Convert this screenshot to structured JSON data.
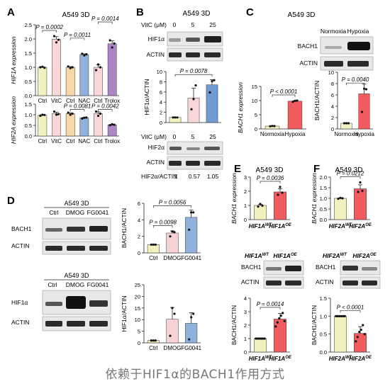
{
  "caption": "依赖于HIF1α的BACH1作用方式",
  "colors": {
    "ctrl": "#f2f0bf",
    "vitc": "#f9d7d9",
    "nac": "#f5d7a8",
    "nac2": "#8fb2dd",
    "trolox": "#ad85c6",
    "hif25": "#6f9bd2",
    "hypoxia": "#f05b5e",
    "dmog": "#f6d2d5",
    "fg": "#8fb2dd",
    "oe": "#f05b5e",
    "axis": "#222222",
    "sig": "#333333"
  },
  "panels": {
    "A": {
      "letter": "A",
      "title": "A549 3D"
    },
    "B": {
      "letter": "B",
      "title": "A549 3D",
      "dose_label": "VitC (μM)",
      "doses": [
        "0",
        "5",
        "25"
      ],
      "blot1": [
        "HIF1α",
        "ACTIN"
      ],
      "blot2": [
        "HIF2α",
        "ACTIN"
      ],
      "ratio_label": "HIF2α/ACTIN",
      "ratios": [
        "1",
        "0.57",
        "1.05"
      ]
    },
    "C": {
      "letter": "C",
      "title": "A549 3D",
      "lanes": [
        "Normoxia",
        "Hypoxia"
      ],
      "blot": [
        "BACH1",
        "ACTIN"
      ]
    },
    "D": {
      "letter": "D",
      "title1": "A549 3D",
      "title2": "A549 3D",
      "lanes": [
        "Ctrl",
        "DMOG",
        "FG0041"
      ],
      "blot1": [
        "BACH1",
        "ACTIN"
      ],
      "blot2": [
        "HIF1α",
        "ACTIN"
      ]
    },
    "E": {
      "letter": "E",
      "title": "A549 3D",
      "lanes": [
        "HIF1A",
        "HIF1A"
      ],
      "sups": [
        "WT",
        "OE"
      ],
      "blot": [
        "BACH1",
        "ACTIN"
      ]
    },
    "F": {
      "letter": "F",
      "title": "A549 3D",
      "lanes": [
        "HIF2A",
        "HIF2A"
      ],
      "sups": [
        "WT",
        "OE"
      ],
      "blot": [
        "BACH1",
        "ACTIN"
      ]
    }
  },
  "chart_data": [
    {
      "id": "A1",
      "type": "bar",
      "ylabel": "HIF1A expression",
      "ylim": [
        0,
        2.5
      ],
      "yticks": [
        0.0,
        0.5,
        1.0,
        1.5,
        2.0,
        2.5
      ],
      "categories": [
        "Ctrl",
        "VitC",
        "Ctrl",
        "NAC",
        "Ctrl",
        "Trolox"
      ],
      "values": [
        1.0,
        1.99,
        1.0,
        1.45,
        1.0,
        1.83
      ],
      "points": [
        [
          1.0,
          1.02,
          0.98
        ],
        [
          2.1,
          1.88,
          1.97
        ],
        [
          1.03,
          0.97,
          1.0
        ],
        [
          1.48,
          1.42,
          1.46
        ],
        [
          0.9,
          1.1,
          1.0
        ],
        [
          1.95,
          1.7,
          1.84
        ]
      ],
      "annotations": [
        {
          "from": 0,
          "to": 1,
          "label": "P = 0.0002"
        },
        {
          "from": 2,
          "to": 3,
          "label": "P = 0.0011"
        },
        {
          "from": 4,
          "to": 5,
          "label": "P = 0.0014"
        }
      ]
    },
    {
      "id": "A2",
      "type": "bar",
      "ylabel": "HIF2A expression",
      "ylim": [
        0,
        1.5
      ],
      "yticks": [
        0.0,
        0.5,
        1.0,
        1.5
      ],
      "categories": [
        "Ctrl",
        "VitC",
        "Ctrl",
        "NAC",
        "Ctrl",
        "Trolox"
      ],
      "values": [
        0.98,
        1.06,
        1.05,
        0.85,
        1.05,
        0.53
      ],
      "points": [
        [
          0.95,
          1.0,
          0.99
        ],
        [
          1.15,
          1.0,
          1.03
        ],
        [
          1.1,
          1.0,
          1.05
        ],
        [
          0.82,
          0.86,
          0.87
        ],
        [
          1.15,
          0.95,
          1.05
        ],
        [
          0.51,
          0.55,
          0.53
        ]
      ],
      "annotations": [
        {
          "from": 2,
          "to": 3,
          "label": "P = 0.0081"
        },
        {
          "from": 4,
          "to": 5,
          "label": "P = 0.0042"
        }
      ]
    },
    {
      "id": "B1",
      "type": "bar",
      "ylabel": "HIF1α/ACTIN",
      "ylim": [
        0,
        10
      ],
      "yticks": [
        0,
        2,
        4,
        6,
        8,
        10
      ],
      "categories": [
        "0",
        "5",
        "25"
      ],
      "values": [
        1.0,
        4.8,
        7.4
      ],
      "points": [
        [
          1.0,
          1.0,
          1.0
        ],
        [
          2.6,
          4.6,
          7.3
        ],
        [
          5.9,
          8.1,
          8.3
        ]
      ],
      "annotations": [
        {
          "from": 0,
          "to": 2,
          "label": "P = 0.0078"
        }
      ]
    },
    {
      "id": "C1",
      "type": "bar",
      "ylabel": "BACH1 expression",
      "ylim": [
        0,
        15
      ],
      "yticks": [
        0,
        5,
        10,
        15
      ],
      "categories": [
        "Normoxia",
        "Hypoxia"
      ],
      "values": [
        1.0,
        9.8
      ],
      "points": [
        [
          0.95,
          1.05,
          1.0
        ],
        [
          9.6,
          9.9,
          10.0
        ]
      ],
      "annotations": [
        {
          "from": 0,
          "to": 1,
          "label": "P < 0.0001"
        }
      ]
    },
    {
      "id": "C2",
      "type": "bar",
      "ylabel": "BACH1/ACTIN",
      "ylim": [
        0,
        10
      ],
      "yticks": [
        0,
        2,
        4,
        6,
        8,
        10
      ],
      "categories": [
        "Normoxia",
        "Hypoxia"
      ],
      "values": [
        1.0,
        6.2
      ],
      "points": [
        [
          1.0,
          1.0,
          1.0
        ],
        [
          3.0,
          7.1,
          7.0
        ]
      ],
      "annotations": [
        {
          "from": 0,
          "to": 1,
          "label": "P = 0.0040"
        }
      ]
    },
    {
      "id": "D1",
      "type": "bar",
      "ylabel": "BACH1/ACTIN",
      "ylim": [
        0,
        6
      ],
      "yticks": [
        0,
        2,
        4,
        6
      ],
      "categories": [
        "Ctrl",
        "DMOG",
        "FG0041"
      ],
      "values": [
        1.0,
        2.4,
        4.3
      ],
      "points": [
        [
          1.0,
          1.0,
          1.0
        ],
        [
          2.0,
          2.6,
          2.5
        ],
        [
          2.8,
          4.9,
          4.9
        ]
      ],
      "annotations": [
        {
          "from": 0,
          "to": 1,
          "label": "P = 0.0098"
        },
        {
          "from": 0,
          "to": 2,
          "label": "P = 0.0056"
        }
      ]
    },
    {
      "id": "D2",
      "type": "bar",
      "ylabel": "HIF1α/ACTIN",
      "ylim": [
        0,
        25
      ],
      "yticks": [
        0,
        5,
        10,
        15,
        20,
        25
      ],
      "categories": [
        "Ctrl",
        "DMOG",
        "FG0041"
      ],
      "values": [
        1.0,
        10.2,
        8.4
      ],
      "points": [
        [
          1.0,
          1.0,
          1.0
        ],
        [
          3.0,
          15.0,
          12.5
        ],
        [
          1.5,
          11.0,
          12.5
        ]
      ],
      "annotations": []
    },
    {
      "id": "E1",
      "type": "bar",
      "ylabel": "BACH1 expression",
      "ylim": [
        0,
        3
      ],
      "yticks": [
        0,
        1,
        2,
        3
      ],
      "categories": [
        "WT",
        "OE"
      ],
      "values": [
        1.0,
        1.95
      ],
      "points": [
        [
          0.92,
          1.1,
          0.98
        ],
        [
          1.75,
          2.3,
          1.9
        ]
      ],
      "annotations": [
        {
          "from": 0,
          "to": 1,
          "label": "P = 0.0036"
        }
      ]
    },
    {
      "id": "E2",
      "type": "bar",
      "ylabel": "BACH1/ACTIN",
      "ylim": [
        0,
        4
      ],
      "yticks": [
        0,
        1,
        2,
        3,
        4
      ],
      "categories": [
        "WT",
        "OE"
      ],
      "values": [
        1.0,
        2.45
      ],
      "points": [
        [
          1.0,
          1.0,
          1.0,
          1.0,
          1.0,
          1.0
        ],
        [
          1.9,
          2.2,
          2.5,
          2.7,
          2.9,
          2.3
        ]
      ],
      "annotations": [
        {
          "from": 0,
          "to": 1,
          "label": "P = 0.0014"
        }
      ]
    },
    {
      "id": "F1",
      "type": "bar",
      "ylabel": "BACH1 expression",
      "ylim": [
        0,
        2.0
      ],
      "yticks": [
        0.0,
        0.5,
        1.0,
        1.5,
        2.0
      ],
      "categories": [
        "WT",
        "OE"
      ],
      "values": [
        1.0,
        1.45
      ],
      "points": [
        [
          0.98,
          1.02,
          1.0
        ],
        [
          1.3,
          1.75,
          1.35
        ]
      ],
      "annotations": [
        {
          "from": 0,
          "to": 1,
          "label": "P = 0.0212"
        }
      ]
    },
    {
      "id": "F2",
      "type": "bar",
      "ylabel": "BACH1/ACTIN",
      "ylim": [
        0,
        1.5
      ],
      "yticks": [
        0.0,
        0.5,
        1.0,
        1.5
      ],
      "categories": [
        "WT",
        "OE"
      ],
      "values": [
        1.0,
        0.52
      ],
      "points": [
        [
          1.0,
          1.0,
          1.0,
          1.0,
          1.0,
          1.0
        ],
        [
          0.3,
          0.42,
          0.56,
          0.62,
          0.75,
          0.5
        ]
      ],
      "annotations": [
        {
          "from": 0,
          "to": 1,
          "label": "P < 0.0001"
        }
      ]
    }
  ]
}
